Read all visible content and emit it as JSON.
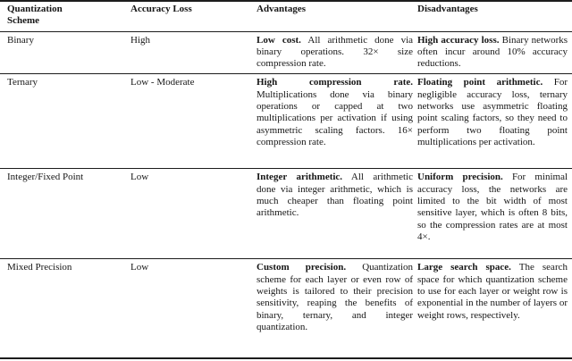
{
  "table": {
    "headers": [
      "Quantization Scheme",
      "Accuracy Loss",
      "Advantages",
      "Disadvantages"
    ],
    "rows": [
      {
        "scheme": "Binary",
        "accuracy_loss": "High",
        "advantages": {
          "lead": "Low cost.",
          "text": "All arithmetic done via binary operations. 32× size compression rate."
        },
        "disadvantages": {
          "lead": "High accuracy loss.",
          "text": "Binary networks often incur around 10% accuracy reductions."
        }
      },
      {
        "scheme": "Ternary",
        "accuracy_loss": "Low - Moderate",
        "advantages": {
          "lead": "High compression rate.",
          "text": "Multiplications done via binary operations or capped at two multiplications per activation if using asymmetric scaling factors. 16× compression rate."
        },
        "disadvantages": {
          "lead": "Floating point arithmetic.",
          "text": "For negligible accuracy loss, ternary networks use asymmetric floating point scaling factors, so they need to perform two floating point multiplications per activation."
        }
      },
      {
        "scheme": "Integer/Fixed Point",
        "accuracy_loss": "Low",
        "advantages": {
          "lead": "Integer arithmetic.",
          "text": "All arithmetic done via integer arithmetic, which is much cheaper than floating point arithmetic."
        },
        "disadvantages": {
          "lead": "Uniform precision.",
          "text": "For minimal accuracy loss, the networks are limited to the bit width of most sensitive layer, which is often 8 bits, so the compression rates are at most 4×."
        }
      },
      {
        "scheme": "Mixed Precision",
        "accuracy_loss": "Low",
        "advantages": {
          "lead": "Custom precision.",
          "text": "Quantization scheme for each layer or even row of weights is tailored to their precision sensitivity, reaping the benefits of binary, ternary, and integer quantization."
        },
        "disadvantages": {
          "lead": "Large search space.",
          "text": "The search space for which quantization scheme to use for each layer or weight row is exponential in the number of layers or weight rows, respectively."
        }
      }
    ]
  }
}
